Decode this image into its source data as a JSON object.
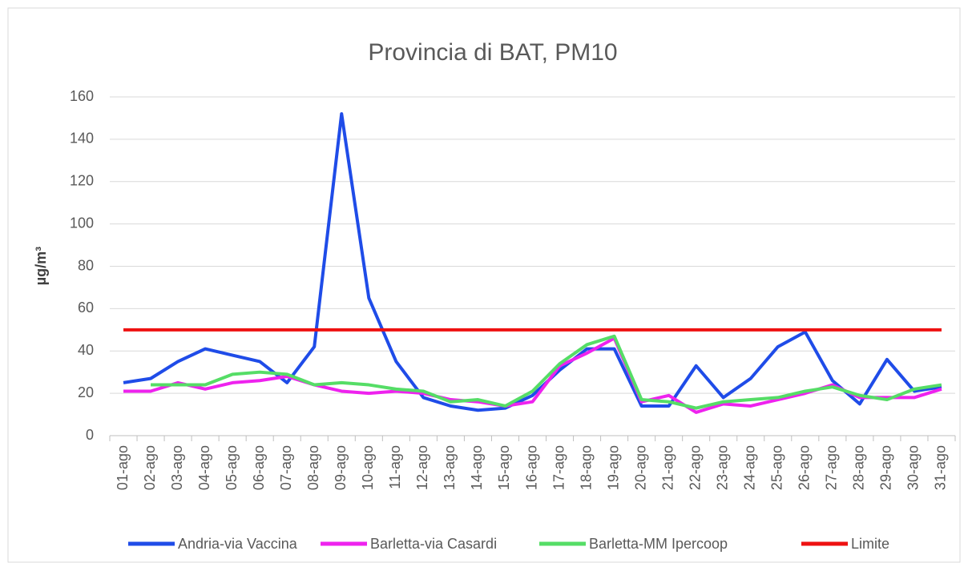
{
  "chart_data": {
    "type": "line",
    "title": "Provincia di BAT, PM10",
    "ylabel": "µg/m³",
    "categories": [
      "01-ago",
      "02-ago",
      "03-ago",
      "04-ago",
      "05-ago",
      "06-ago",
      "07-ago",
      "08-ago",
      "09-ago",
      "10-ago",
      "11-ago",
      "12-ago",
      "13-ago",
      "14-ago",
      "15-ago",
      "16-ago",
      "17-ago",
      "18-ago",
      "19-ago",
      "20-ago",
      "21-ago",
      "22-ago",
      "23-ago",
      "24-ago",
      "25-ago",
      "26-ago",
      "27-ago",
      "28-ago",
      "29-ago",
      "30-ago",
      "31-ago"
    ],
    "series": [
      {
        "name": "Andria-via Vaccina",
        "color": "#1f4ce8",
        "values": [
          25,
          27,
          35,
          41,
          38,
          35,
          25,
          42,
          152,
          65,
          35,
          18,
          14,
          12,
          13,
          19,
          31,
          41,
          41,
          14,
          14,
          33,
          18,
          27,
          42,
          49,
          26,
          15,
          36,
          21,
          23
        ]
      },
      {
        "name": "Barletta-via Casardi",
        "color": "#ee22ee",
        "values": [
          21,
          21,
          25,
          22,
          25,
          26,
          28,
          24,
          21,
          20,
          21,
          20,
          17,
          16,
          14,
          16,
          33,
          39,
          46,
          16,
          19,
          11,
          15,
          14,
          17,
          20,
          24,
          18,
          18,
          18,
          22
        ]
      },
      {
        "name": "Barletta-MM Ipercoop",
        "color": "#55dd66",
        "values": [
          null,
          24,
          24,
          24,
          29,
          30,
          29,
          24,
          25,
          24,
          22,
          21,
          16,
          17,
          14,
          21,
          34,
          43,
          47,
          17,
          16,
          13,
          16,
          17,
          18,
          21,
          23,
          19,
          17,
          22,
          24
        ]
      },
      {
        "name": "Limite",
        "color": "#ee1111",
        "values": [
          50,
          50,
          50,
          50,
          50,
          50,
          50,
          50,
          50,
          50,
          50,
          50,
          50,
          50,
          50,
          50,
          50,
          50,
          50,
          50,
          50,
          50,
          50,
          50,
          50,
          50,
          50,
          50,
          50,
          50,
          50
        ]
      }
    ],
    "ylim": [
      0,
      160
    ],
    "yticks": [
      0,
      20,
      40,
      60,
      80,
      100,
      120,
      140,
      160
    ],
    "grid": true
  }
}
